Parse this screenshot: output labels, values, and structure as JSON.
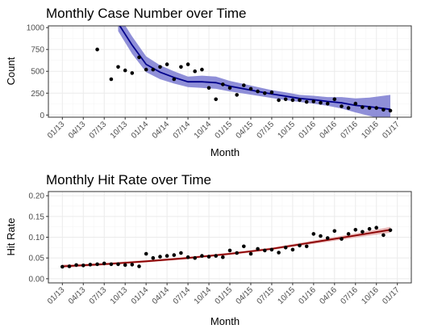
{
  "chart_data": [
    {
      "type": "scatter",
      "title": "Monthly Case Number over Time",
      "xlabel": "Month",
      "ylabel": "Count",
      "x_tick_labels": [
        "01/13",
        "04/13",
        "07/13",
        "10/13",
        "01/14",
        "04/14",
        "07/14",
        "10/14",
        "01/15",
        "04/15",
        "07/15",
        "10/15",
        "01/16",
        "04/16",
        "07/16",
        "10/16",
        "01/17"
      ],
      "y_ticks": [
        0,
        250,
        500,
        750,
        1000
      ],
      "y_tick_labels": [
        "0",
        "250",
        "500",
        "750",
        "1000"
      ],
      "ylim": [
        -25,
        1020
      ],
      "grid": true,
      "legend": "none",
      "point_color": "#000000",
      "smooth_color": "#00008b",
      "band_color": "#7b7bd1",
      "series": [
        {
          "kind": "points",
          "x": [
            "2013-06",
            "2013-08",
            "2013-09",
            "2013-10",
            "2013-11",
            "2013-12",
            "2014-01",
            "2014-02",
            "2014-03",
            "2014-04",
            "2014-05",
            "2014-06",
            "2014-07",
            "2014-08",
            "2014-09",
            "2014-10",
            "2014-11",
            "2014-12",
            "2015-01",
            "2015-02",
            "2015-03",
            "2015-04",
            "2015-05",
            "2015-06",
            "2015-07",
            "2015-08",
            "2015-09",
            "2015-10",
            "2015-11",
            "2015-12",
            "2016-01",
            "2016-02",
            "2016-03",
            "2016-04",
            "2016-05",
            "2016-06",
            "2016-07",
            "2016-08",
            "2016-09",
            "2016-10",
            "2016-11",
            "2016-12"
          ],
          "y": [
            750,
            410,
            550,
            510,
            480,
            660,
            520,
            520,
            550,
            580,
            410,
            550,
            580,
            500,
            520,
            310,
            180,
            350,
            310,
            230,
            340,
            300,
            270,
            250,
            260,
            170,
            180,
            170,
            170,
            150,
            155,
            140,
            130,
            180,
            100,
            80,
            130,
            90,
            80,
            80,
            60,
            50
          ]
        },
        {
          "kind": "smooth",
          "x": [
            "2013-09",
            "2013-11",
            "2014-01",
            "2014-03",
            "2014-05",
            "2014-07",
            "2014-09",
            "2014-11",
            "2015-01",
            "2015-03",
            "2015-05",
            "2015-07",
            "2015-09",
            "2015-11",
            "2016-01",
            "2016-03",
            "2016-05",
            "2016-07",
            "2016-09",
            "2016-11",
            "2016-12"
          ],
          "y": [
            1050,
            800,
            580,
            490,
            430,
            380,
            380,
            370,
            330,
            300,
            270,
            240,
            215,
            190,
            175,
            155,
            140,
            110,
            95,
            75,
            65
          ],
          "lower": [
            960,
            700,
            490,
            410,
            360,
            320,
            310,
            300,
            270,
            245,
            220,
            195,
            170,
            150,
            130,
            105,
            75,
            30,
            -10,
            -50,
            -70
          ],
          "upper": [
            1150,
            900,
            670,
            570,
            500,
            440,
            450,
            440,
            390,
            355,
            320,
            285,
            260,
            230,
            220,
            205,
            205,
            190,
            200,
            220,
            230
          ]
        }
      ]
    },
    {
      "type": "scatter",
      "title": "Monthly Hit Rate over Time",
      "xlabel": "Month",
      "ylabel": "Hit Rate",
      "x_tick_labels": [
        "01/13",
        "04/13",
        "07/13",
        "10/13",
        "01/14",
        "04/14",
        "07/14",
        "10/14",
        "01/15",
        "04/15",
        "07/15",
        "10/15",
        "01/16",
        "04/16",
        "07/16",
        "10/16",
        "01/17"
      ],
      "y_ticks": [
        0,
        0.05,
        0.1,
        0.15,
        0.2
      ],
      "y_tick_labels": [
        "0.00",
        "0.05",
        "0.10",
        "0.15",
        "0.20"
      ],
      "ylim": [
        -0.01,
        0.21
      ],
      "grid": true,
      "legend": "none",
      "point_color": "#000000",
      "smooth_color": "#8b0000",
      "band_color": "#e09a9a",
      "series": [
        {
          "kind": "points",
          "x": [
            "2013-01",
            "2013-02",
            "2013-03",
            "2013-04",
            "2013-05",
            "2013-06",
            "2013-07",
            "2013-08",
            "2013-09",
            "2013-10",
            "2013-11",
            "2013-12",
            "2014-01",
            "2014-02",
            "2014-03",
            "2014-04",
            "2014-05",
            "2014-06",
            "2014-07",
            "2014-08",
            "2014-09",
            "2014-10",
            "2014-11",
            "2014-12",
            "2015-01",
            "2015-02",
            "2015-03",
            "2015-04",
            "2015-05",
            "2015-06",
            "2015-07",
            "2015-08",
            "2015-09",
            "2015-10",
            "2015-11",
            "2015-12",
            "2016-01",
            "2016-02",
            "2016-03",
            "2016-04",
            "2016-05",
            "2016-06",
            "2016-07",
            "2016-08",
            "2016-09",
            "2016-10",
            "2016-11",
            "2016-12"
          ],
          "y": [
            0.029,
            0.03,
            0.033,
            0.032,
            0.034,
            0.035,
            0.037,
            0.035,
            0.035,
            0.033,
            0.034,
            0.03,
            0.06,
            0.05,
            0.053,
            0.055,
            0.057,
            0.062,
            0.052,
            0.05,
            0.055,
            0.053,
            0.055,
            0.052,
            0.068,
            0.062,
            0.078,
            0.06,
            0.072,
            0.068,
            0.07,
            0.063,
            0.075,
            0.07,
            0.08,
            0.078,
            0.108,
            0.103,
            0.098,
            0.115,
            0.096,
            0.108,
            0.118,
            0.113,
            0.12,
            0.123,
            0.105,
            0.117
          ]
        },
        {
          "kind": "smooth",
          "x": [
            "2013-01",
            "2013-07",
            "2014-01",
            "2014-07",
            "2015-01",
            "2015-07",
            "2016-01",
            "2016-07",
            "2016-12"
          ],
          "y": [
            0.03,
            0.035,
            0.042,
            0.05,
            0.06,
            0.072,
            0.088,
            0.104,
            0.118
          ],
          "lower": [
            0.026,
            0.032,
            0.039,
            0.047,
            0.057,
            0.069,
            0.084,
            0.099,
            0.111
          ],
          "upper": [
            0.034,
            0.038,
            0.045,
            0.053,
            0.063,
            0.075,
            0.092,
            0.109,
            0.125
          ]
        }
      ]
    }
  ]
}
